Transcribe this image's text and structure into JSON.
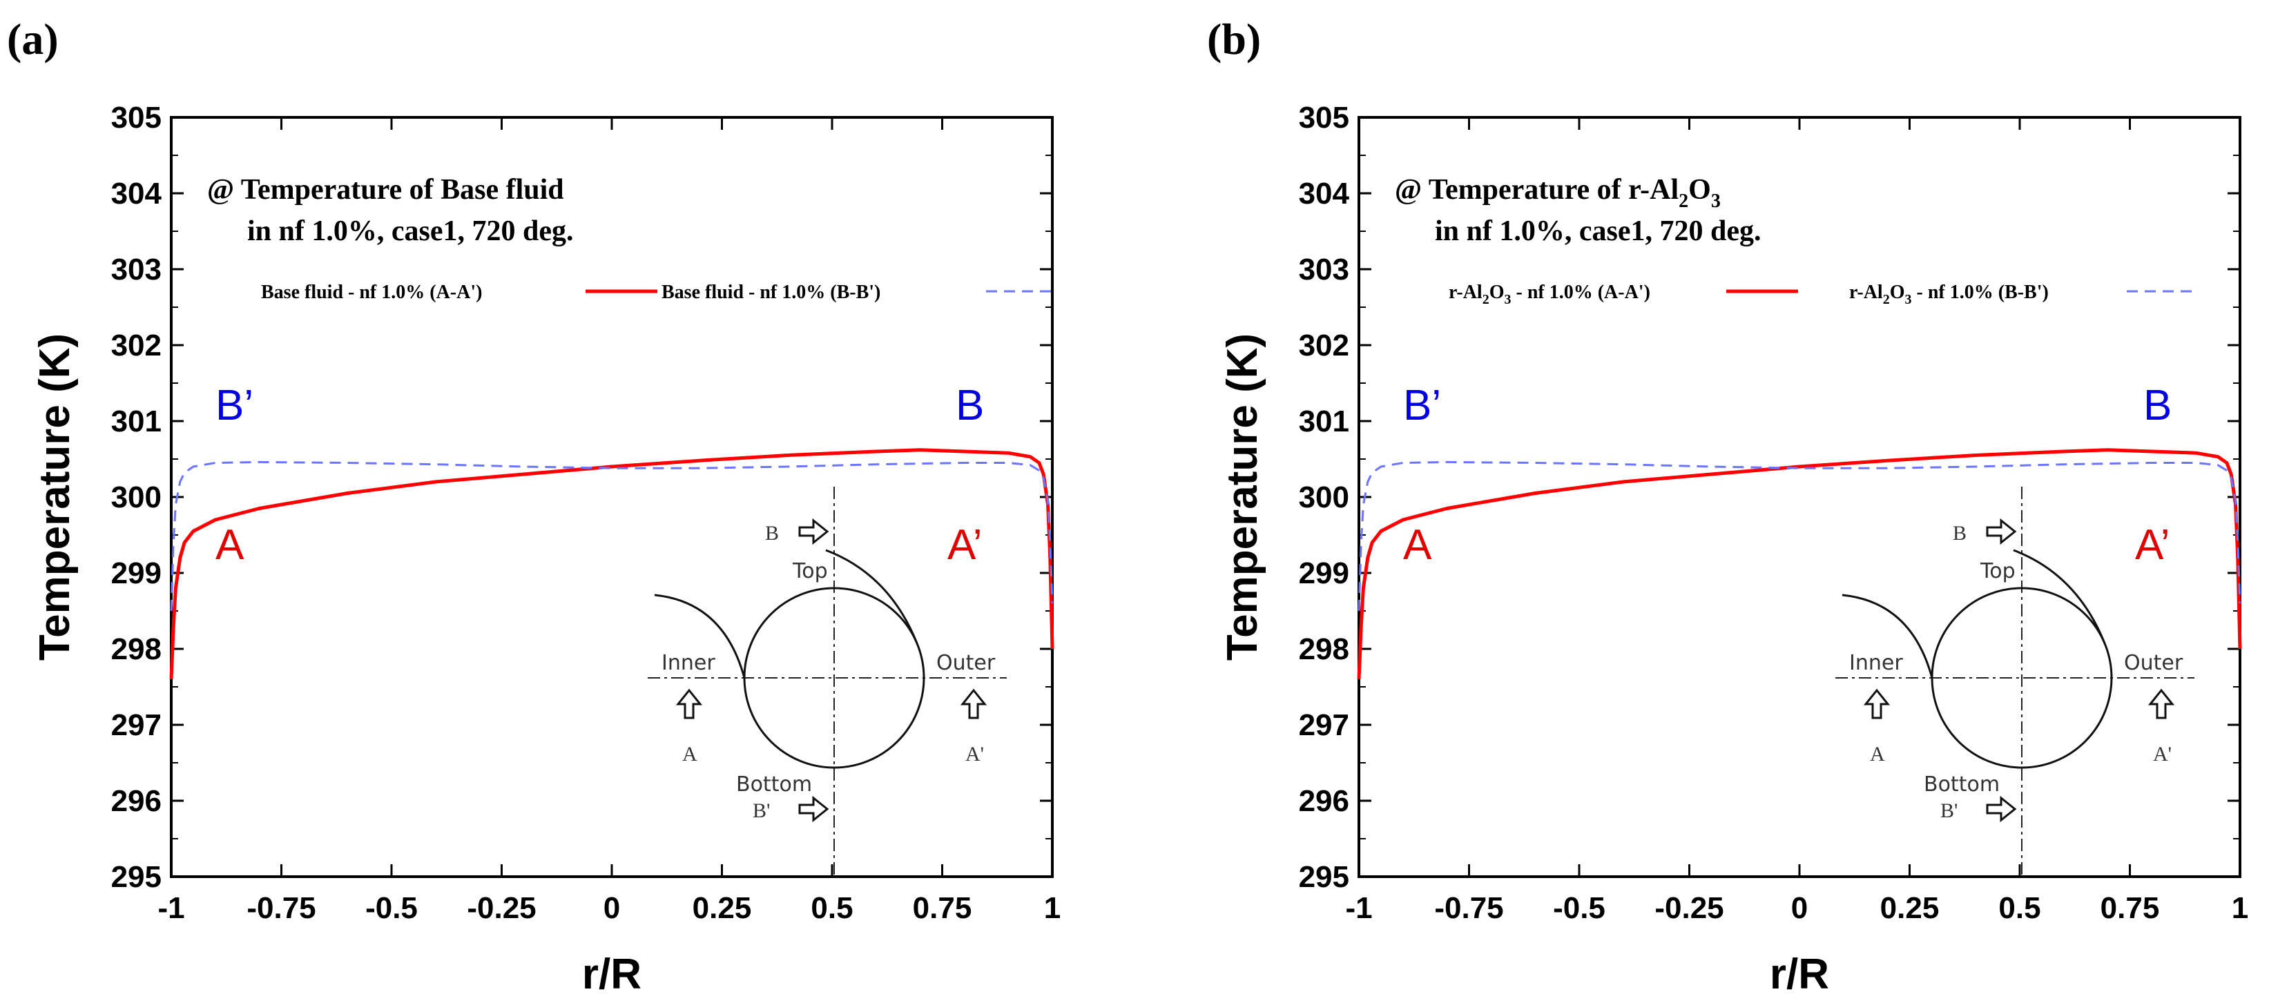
{
  "chart_data": [
    {
      "panel_label": "(a)",
      "type": "line",
      "annotation": {
        "line1_prefix": "@ Temperature of ",
        "line1_main": "Base fluid",
        "line1_sub": "",
        "line1_tail": "",
        "line2": "in nf 1.0%, case1, 720 deg."
      },
      "legend": [
        {
          "label": "Base fluid - nf 1.0% (A-A')",
          "color": "#ff0000",
          "style": "solid"
        },
        {
          "label": "Base fluid - nf 1.0% (B-B')",
          "color": "#6b75ff",
          "style": "dashed"
        }
      ],
      "xlabel": "r/R",
      "ylabel": "Temperature (K)",
      "xlim": [
        -1,
        1
      ],
      "ylim": [
        295,
        305
      ],
      "xticks": [
        "-1",
        "-0.75",
        "-0.5",
        "-0.25",
        "0",
        "0.25",
        "0.5",
        "0.75",
        "1"
      ],
      "yticks": [
        "295",
        "296",
        "297",
        "298",
        "299",
        "300",
        "301",
        "302",
        "303",
        "304",
        "305"
      ],
      "point_labels": {
        "B_prime": "B’",
        "B": "B",
        "A": "A",
        "A_prime": "A’"
      },
      "inset": {
        "top": "Top",
        "bottom": "Bottom",
        "inner": "Inner",
        "outer": "Outer",
        "A": "A",
        "A_prime": "A'",
        "B": "B",
        "B_prime": "B'"
      },
      "series": [
        {
          "name": "A-A'",
          "x": [
            -1.0,
            -0.995,
            -0.99,
            -0.98,
            -0.97,
            -0.95,
            -0.9,
            -0.8,
            -0.6,
            -0.4,
            -0.2,
            0.0,
            0.2,
            0.4,
            0.6,
            0.7,
            0.8,
            0.9,
            0.95,
            0.97,
            0.98,
            0.99,
            0.995,
            1.0
          ],
          "y": [
            297.6,
            298.3,
            298.8,
            299.2,
            299.4,
            299.55,
            299.7,
            299.85,
            300.05,
            300.2,
            300.3,
            300.4,
            300.48,
            300.55,
            300.6,
            300.62,
            300.6,
            300.58,
            300.53,
            300.45,
            300.3,
            299.9,
            299.2,
            298.0
          ]
        },
        {
          "name": "B-B'",
          "x": [
            -1.0,
            -0.995,
            -0.99,
            -0.98,
            -0.97,
            -0.95,
            -0.9,
            -0.8,
            -0.6,
            -0.4,
            -0.2,
            0.0,
            0.2,
            0.4,
            0.6,
            0.8,
            0.9,
            0.95,
            0.97,
            0.98,
            0.99,
            0.995,
            1.0
          ],
          "y": [
            298.5,
            299.4,
            299.9,
            300.2,
            300.32,
            300.4,
            300.45,
            300.46,
            300.45,
            300.43,
            300.4,
            300.38,
            300.38,
            300.4,
            300.43,
            300.45,
            300.45,
            300.42,
            300.35,
            300.25,
            299.95,
            299.4,
            298.6
          ]
        }
      ]
    },
    {
      "panel_label": "(b)",
      "type": "line",
      "annotation": {
        "line1_prefix": "@ Temperature of ",
        "line1_main": "r-Al",
        "line1_sub": "2",
        "line1_tail": "O",
        "line1_sub2": "3",
        "line2": "in nf 1.0%, case1, 720 deg."
      },
      "legend": [
        {
          "label_pre": "r-Al",
          "label_sub": "2",
          "label_mid": "O",
          "label_sub2": "3",
          "label_post": " - nf 1.0% (A-A')",
          "color": "#ff0000",
          "style": "solid"
        },
        {
          "label_pre": "r-Al",
          "label_sub": "2",
          "label_mid": "O",
          "label_sub2": "3",
          "label_post": " - nf 1.0% (B-B')",
          "color": "#6b75ff",
          "style": "dashed"
        }
      ],
      "xlabel": "r/R",
      "ylabel": "Temperature (K)",
      "xlim": [
        -1,
        1
      ],
      "ylim": [
        295,
        305
      ],
      "xticks": [
        "-1",
        "-0.75",
        "-0.5",
        "-0.25",
        "0",
        "0.25",
        "0.5",
        "0.75",
        "1"
      ],
      "yticks": [
        "295",
        "296",
        "297",
        "298",
        "299",
        "300",
        "301",
        "302",
        "303",
        "304",
        "305"
      ],
      "point_labels": {
        "B_prime": "B’",
        "B": "B",
        "A": "A",
        "A_prime": "A’"
      },
      "inset": {
        "top": "Top",
        "bottom": "Bottom",
        "inner": "Inner",
        "outer": "Outer",
        "A": "A",
        "A_prime": "A'",
        "B": "B",
        "B_prime": "B'"
      },
      "series": [
        {
          "name": "A-A'",
          "x": [
            -1.0,
            -0.995,
            -0.99,
            -0.98,
            -0.97,
            -0.95,
            -0.9,
            -0.8,
            -0.6,
            -0.4,
            -0.2,
            0.0,
            0.2,
            0.4,
            0.6,
            0.7,
            0.8,
            0.9,
            0.95,
            0.97,
            0.98,
            0.99,
            0.995,
            1.0
          ],
          "y": [
            297.6,
            298.3,
            298.8,
            299.2,
            299.4,
            299.55,
            299.7,
            299.85,
            300.05,
            300.2,
            300.3,
            300.4,
            300.48,
            300.55,
            300.6,
            300.62,
            300.6,
            300.58,
            300.53,
            300.45,
            300.3,
            299.9,
            299.2,
            298.0
          ]
        },
        {
          "name": "B-B'",
          "x": [
            -1.0,
            -0.995,
            -0.99,
            -0.98,
            -0.97,
            -0.95,
            -0.9,
            -0.8,
            -0.6,
            -0.4,
            -0.2,
            0.0,
            0.2,
            0.4,
            0.6,
            0.8,
            0.9,
            0.95,
            0.97,
            0.98,
            0.99,
            0.995,
            1.0
          ],
          "y": [
            298.5,
            299.4,
            299.9,
            300.2,
            300.32,
            300.4,
            300.45,
            300.46,
            300.45,
            300.43,
            300.4,
            300.38,
            300.38,
            300.4,
            300.43,
            300.45,
            300.45,
            300.42,
            300.35,
            300.25,
            299.95,
            299.4,
            298.6
          ]
        }
      ]
    }
  ]
}
